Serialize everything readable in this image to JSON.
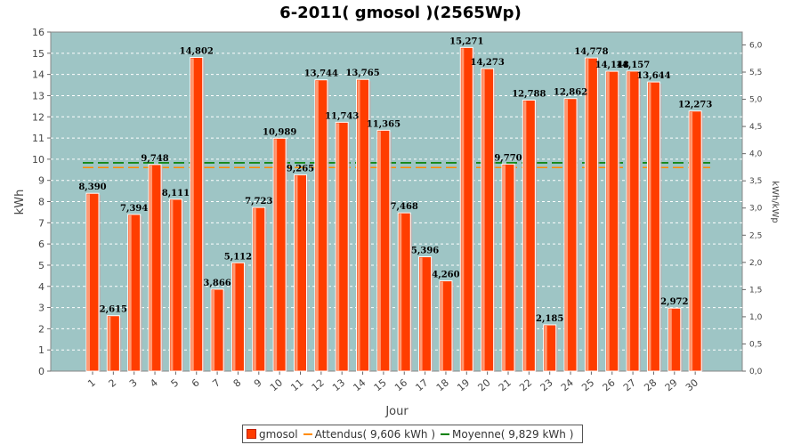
{
  "chart_data": {
    "type": "bar",
    "title": "6-2011( gmosol )(2565Wp)",
    "xlabel": "Jour",
    "ylabel": "kWh",
    "y2label": "kWh/kWp",
    "ylim": [
      0,
      16
    ],
    "y2lim": [
      0,
      6.237
    ],
    "yticks": [
      "0",
      "1",
      "2",
      "3",
      "4",
      "5",
      "6",
      "7",
      "8",
      "9",
      "10",
      "11",
      "12",
      "13",
      "14",
      "15",
      "16"
    ],
    "y2ticks": [
      "0,0",
      "0,5",
      "1,0",
      "1,5",
      "2,0",
      "2,5",
      "3,0",
      "3,5",
      "4,0",
      "4,5",
      "5,0",
      "5,5",
      "6,0"
    ],
    "categories": [
      "1",
      "2",
      "3",
      "4",
      "5",
      "6",
      "7",
      "8",
      "9",
      "10",
      "11",
      "12",
      "13",
      "14",
      "15",
      "16",
      "17",
      "18",
      "19",
      "20",
      "21",
      "22",
      "23",
      "24",
      "25",
      "26",
      "27",
      "28",
      "29",
      "30"
    ],
    "series": [
      {
        "name": "gmosol",
        "values": [
          8.39,
          2.615,
          7.394,
          9.748,
          8.111,
          14.802,
          3.866,
          5.112,
          7.723,
          10.989,
          9.265,
          13.744,
          11.743,
          13.765,
          11.365,
          7.468,
          5.396,
          4.26,
          15.271,
          14.273,
          9.77,
          12.788,
          2.185,
          12.862,
          14.778,
          14.148,
          14.157,
          13.644,
          2.972,
          12.273
        ],
        "labels": [
          "8,390",
          "2,615",
          "7,394",
          "9,748",
          "8,111",
          "14,802",
          "3,866",
          "5,112",
          "7,723",
          "10,989",
          "9,265",
          "13,744",
          "11,743",
          "13,765",
          "11,365",
          "7,468",
          "5,396",
          "4,260",
          "15,271",
          "14,273",
          "9,770",
          "12,788",
          "2,185",
          "12,862",
          "14,778",
          "14,148",
          "14,157",
          "13,644",
          "2,972",
          "12,273"
        ],
        "color": "#ff3d00"
      }
    ],
    "reference_lines": [
      {
        "name": "Attendus",
        "value": 9.606,
        "color": "#ff8c00"
      },
      {
        "name": "Moyenne",
        "value": 9.829,
        "color": "#008000"
      }
    ],
    "legend": {
      "position": "bottom",
      "items": [
        "gmosol",
        "Attendus( 9,606 kWh )",
        "Moyenne( 9,829 kWh )"
      ]
    },
    "plot_background": "#9ec5c5",
    "grid": true
  }
}
